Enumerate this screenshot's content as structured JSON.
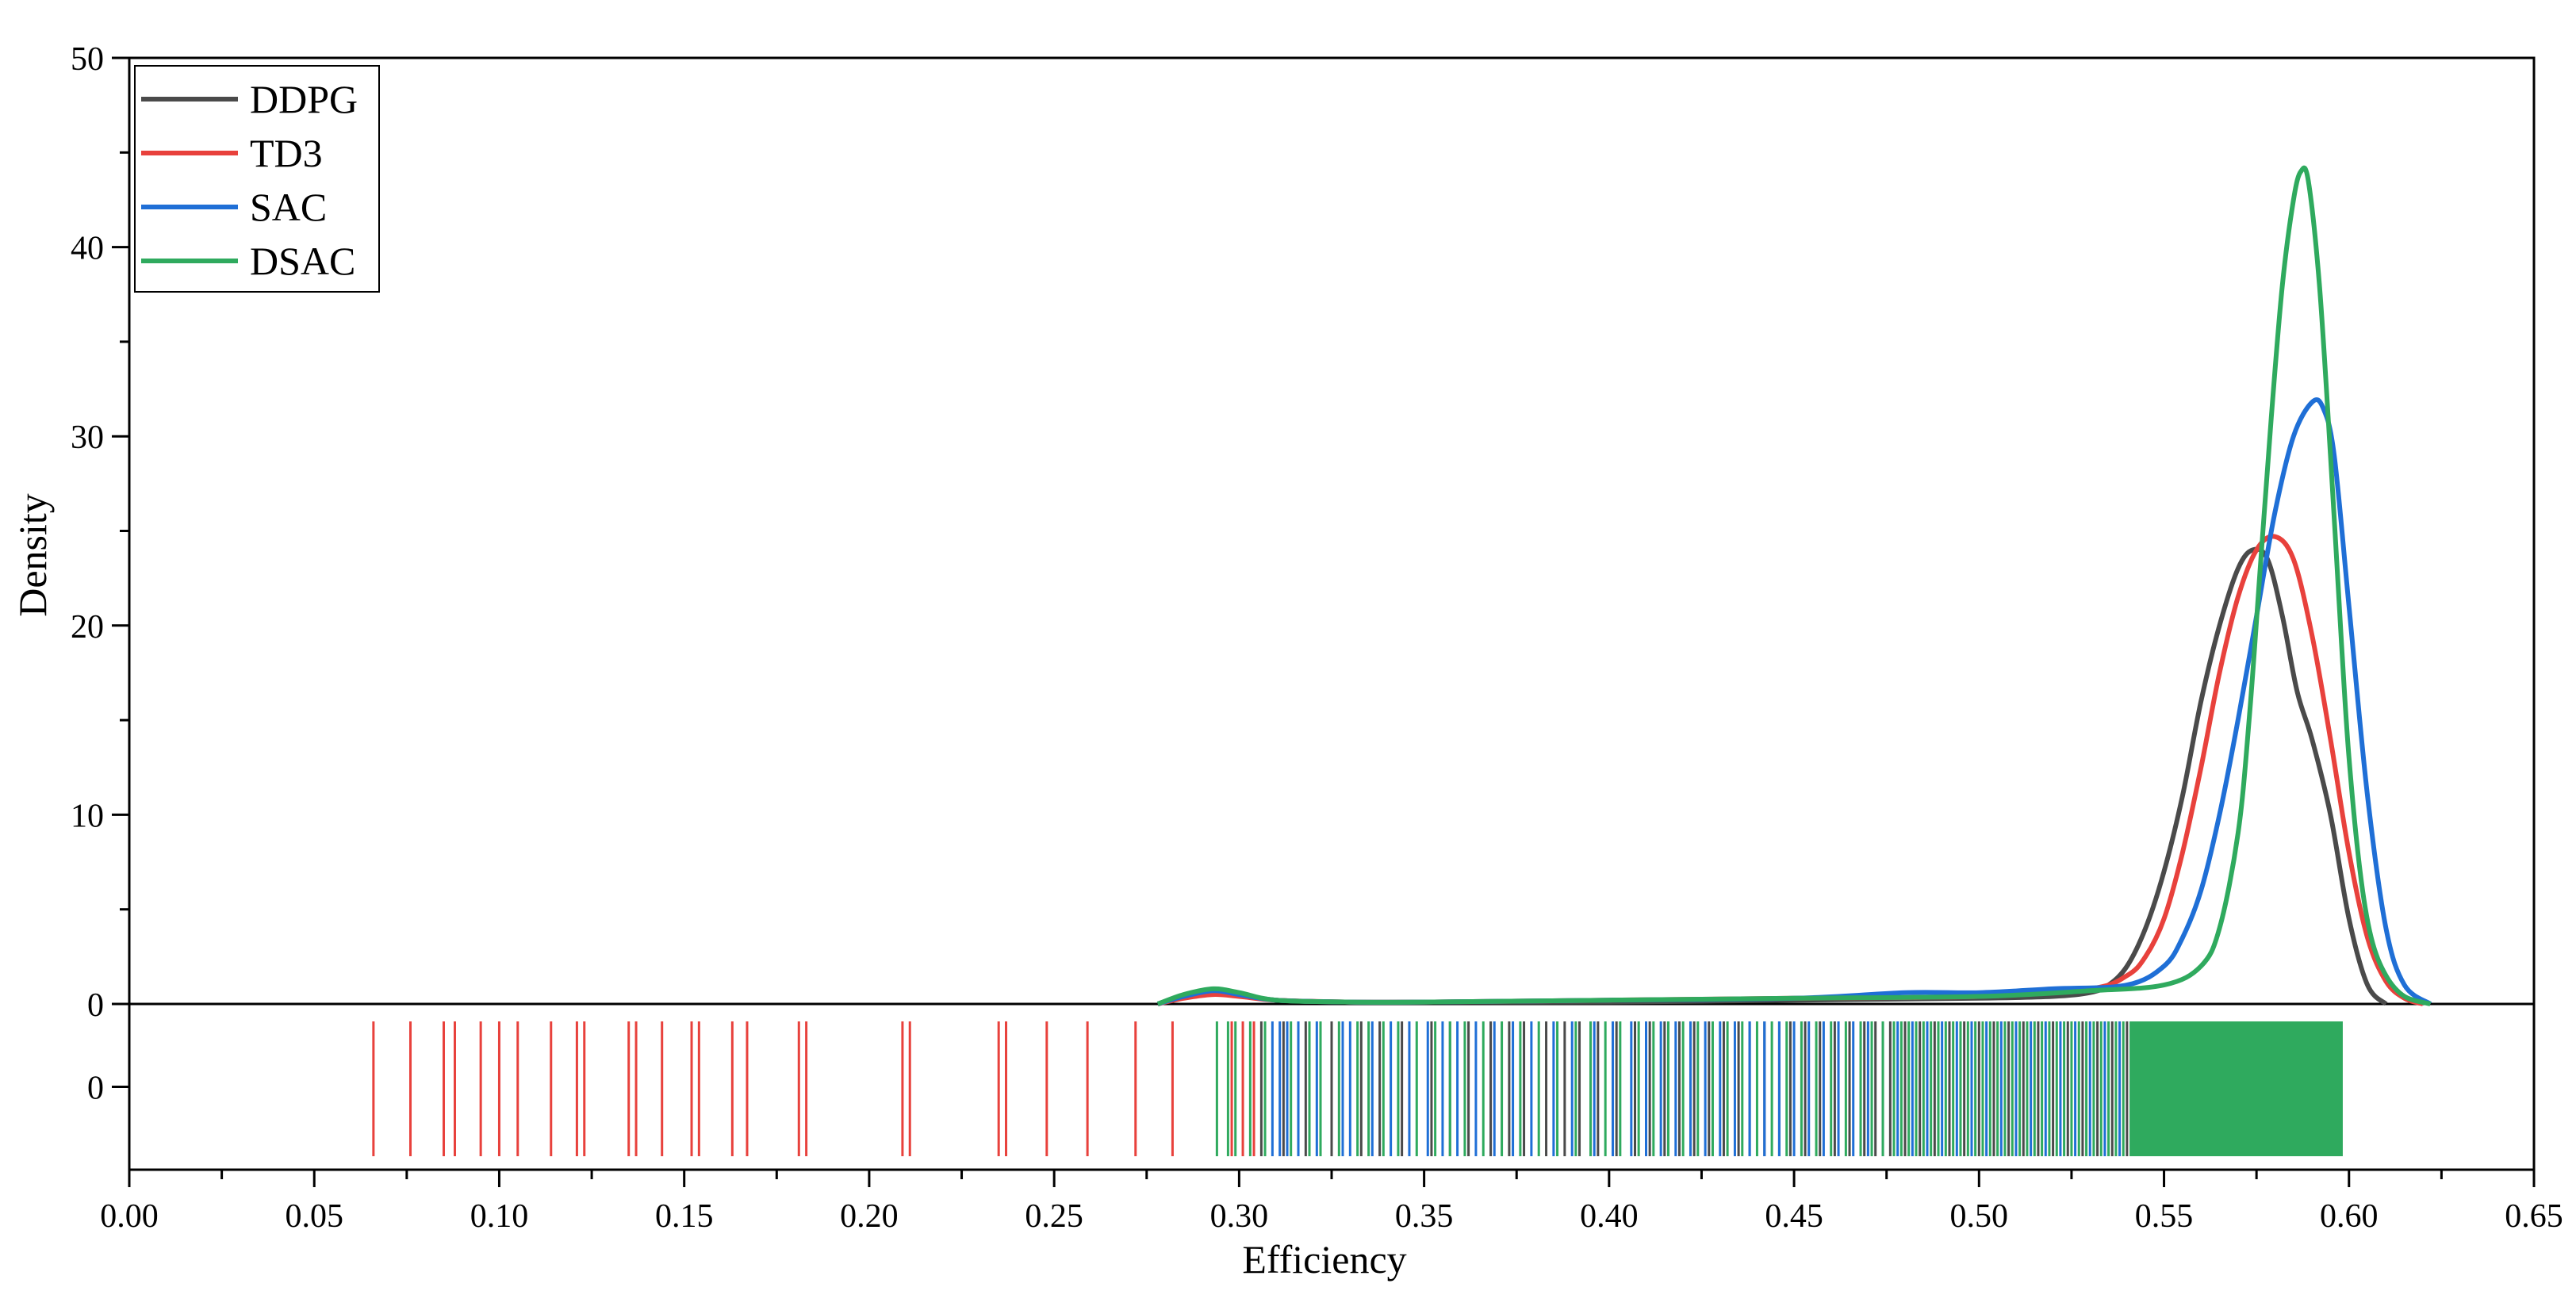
{
  "chart_data": {
    "type": "line",
    "title": "",
    "xlabel": "Efficiency",
    "ylabel": "Density",
    "xlim": [
      0.0,
      0.65
    ],
    "ylim": [
      0,
      50
    ],
    "x_ticks": [
      "0.00",
      "0.05",
      "0.10",
      "0.15",
      "0.20",
      "0.25",
      "0.30",
      "0.35",
      "0.40",
      "0.45",
      "0.50",
      "0.55",
      "0.60",
      "0.65"
    ],
    "y_ticks": [
      "0",
      "10",
      "20",
      "30",
      "40",
      "50"
    ],
    "rug_tick_label": "0",
    "legend_position": "top-left",
    "grid": false,
    "series": [
      {
        "name": "DDPG",
        "color": "#4a4a4a",
        "x": [
          0.278,
          0.285,
          0.293,
          0.3,
          0.31,
          0.33,
          0.35,
          0.4,
          0.45,
          0.5,
          0.52,
          0.53,
          0.535,
          0.54,
          0.545,
          0.55,
          0.555,
          0.56,
          0.565,
          0.57,
          0.574,
          0.578,
          0.582,
          0.586,
          0.59,
          0.595,
          0.6,
          0.605,
          0.61
        ],
        "y": [
          0.0,
          0.4,
          0.6,
          0.5,
          0.2,
          0.1,
          0.1,
          0.1,
          0.2,
          0.3,
          0.4,
          0.6,
          1.0,
          2.0,
          4.0,
          7.0,
          11.0,
          16.0,
          20.0,
          23.0,
          24.0,
          23.5,
          20.5,
          16.5,
          14.0,
          10.0,
          4.5,
          1.0,
          0.0
        ]
      },
      {
        "name": "TD3",
        "color": "#e8413c",
        "x": [
          0.278,
          0.285,
          0.293,
          0.3,
          0.31,
          0.33,
          0.35,
          0.4,
          0.45,
          0.5,
          0.53,
          0.54,
          0.545,
          0.55,
          0.555,
          0.56,
          0.565,
          0.57,
          0.575,
          0.58,
          0.585,
          0.59,
          0.595,
          0.6,
          0.605,
          0.61,
          0.615,
          0.62
        ],
        "y": [
          0.0,
          0.3,
          0.5,
          0.4,
          0.2,
          0.1,
          0.1,
          0.2,
          0.3,
          0.4,
          0.8,
          1.5,
          2.5,
          4.5,
          8.0,
          12.5,
          17.5,
          21.5,
          24.0,
          24.7,
          23.5,
          19.5,
          14.0,
          8.0,
          3.5,
          1.2,
          0.3,
          0.0
        ]
      },
      {
        "name": "SAC",
        "color": "#1f6fd6",
        "x": [
          0.278,
          0.285,
          0.293,
          0.3,
          0.31,
          0.33,
          0.35,
          0.4,
          0.45,
          0.48,
          0.5,
          0.52,
          0.54,
          0.55,
          0.555,
          0.56,
          0.565,
          0.57,
          0.575,
          0.58,
          0.585,
          0.59,
          0.593,
          0.596,
          0.6,
          0.605,
          0.61,
          0.615,
          0.622
        ],
        "y": [
          0.0,
          0.4,
          0.7,
          0.5,
          0.2,
          0.1,
          0.1,
          0.2,
          0.3,
          0.6,
          0.6,
          0.8,
          1.0,
          2.0,
          3.5,
          6.0,
          10.0,
          15.0,
          20.5,
          26.0,
          30.0,
          31.8,
          31.5,
          29.0,
          21.0,
          11.0,
          4.0,
          1.0,
          0.0
        ]
      },
      {
        "name": "DSAC",
        "color": "#2faa5e",
        "x": [
          0.278,
          0.285,
          0.293,
          0.3,
          0.31,
          0.33,
          0.35,
          0.4,
          0.45,
          0.5,
          0.53,
          0.55,
          0.56,
          0.565,
          0.57,
          0.573,
          0.576,
          0.579,
          0.582,
          0.585,
          0.587,
          0.589,
          0.592,
          0.595,
          0.598,
          0.6,
          0.603,
          0.606,
          0.61,
          0.615,
          0.622
        ],
        "y": [
          0.0,
          0.5,
          0.8,
          0.6,
          0.2,
          0.1,
          0.1,
          0.2,
          0.3,
          0.4,
          0.7,
          1.0,
          2.0,
          4.0,
          9.0,
          15.0,
          23.0,
          31.0,
          38.0,
          42.5,
          44.0,
          43.5,
          38.0,
          29.0,
          19.0,
          13.0,
          7.0,
          3.5,
          1.5,
          0.4,
          0.0
        ]
      }
    ],
    "rug": [
      {
        "name": "TD3",
        "color": "#e8413c",
        "x": [
          0.066,
          0.076,
          0.085,
          0.088,
          0.095,
          0.1,
          0.105,
          0.114,
          0.121,
          0.123,
          0.135,
          0.137,
          0.144,
          0.152,
          0.154,
          0.163,
          0.167,
          0.181,
          0.183,
          0.209,
          0.211,
          0.235,
          0.237,
          0.248,
          0.259,
          0.272,
          0.282,
          0.298,
          0.301,
          0.304
        ]
      },
      {
        "name": "DDPG",
        "color": "#4a4a4a",
        "x": [
          0.306,
          0.312,
          0.318,
          0.325,
          0.333,
          0.338,
          0.344,
          0.352,
          0.357,
          0.362,
          0.368,
          0.373,
          0.377,
          0.383,
          0.388,
          0.392,
          0.397,
          0.402,
          0.407,
          0.411,
          0.415,
          0.419,
          0.423,
          0.427,
          0.431,
          0.435,
          0.438,
          0.442,
          0.446,
          0.449,
          0.453,
          0.457,
          0.461,
          0.465,
          0.469,
          0.472,
          0.476,
          0.48,
          0.484,
          0.488,
          0.492,
          0.496,
          0.5,
          0.504,
          0.508,
          0.512,
          0.516,
          0.52,
          0.524,
          0.528,
          0.532,
          0.536,
          0.54
        ]
      },
      {
        "name": "SAC",
        "color": "#1f6fd6",
        "x": [
          0.309,
          0.311,
          0.313,
          0.316,
          0.321,
          0.328,
          0.33,
          0.336,
          0.341,
          0.346,
          0.351,
          0.355,
          0.359,
          0.364,
          0.369,
          0.374,
          0.379,
          0.385,
          0.39,
          0.396,
          0.401,
          0.406,
          0.41,
          0.414,
          0.418,
          0.422,
          0.426,
          0.43,
          0.434,
          0.438,
          0.442,
          0.446,
          0.45,
          0.454,
          0.458,
          0.462,
          0.466,
          0.47,
          0.474,
          0.478,
          0.482,
          0.486,
          0.49,
          0.494,
          0.498,
          0.502,
          0.506,
          0.51,
          0.514,
          0.518,
          0.522,
          0.526,
          0.53,
          0.534,
          0.538,
          0.542,
          0.551,
          0.56,
          0.568,
          0.576
        ]
      },
      {
        "name": "DSAC",
        "color": "#2faa5e",
        "x": [
          0.294,
          0.297,
          0.299,
          0.303,
          0.307,
          0.314,
          0.319,
          0.322,
          0.327,
          0.332,
          0.335,
          0.339,
          0.343,
          0.348,
          0.353,
          0.357,
          0.361,
          0.366,
          0.371,
          0.376,
          0.381,
          0.386,
          0.391,
          0.395,
          0.399,
          0.403,
          0.408,
          0.412,
          0.416,
          0.42,
          0.424,
          0.428,
          0.432,
          0.436,
          0.44,
          0.444,
          0.448,
          0.452,
          0.456,
          0.46,
          0.464,
          0.468,
          0.471,
          0.474,
          0.477,
          0.479,
          0.481,
          0.483,
          0.485,
          0.487,
          0.489,
          0.491,
          0.493,
          0.495,
          0.497,
          0.499,
          0.501,
          0.503,
          0.505,
          0.507,
          0.509,
          0.511,
          0.513,
          0.515,
          0.517,
          0.519,
          0.521,
          0.523,
          0.525,
          0.527,
          0.529,
          0.531,
          0.533,
          0.535,
          0.537,
          0.539,
          0.541,
          0.543,
          0.545,
          0.547,
          0.549,
          0.551,
          0.553,
          0.555,
          0.557,
          0.559,
          0.561,
          0.563,
          0.565,
          0.567,
          0.569,
          0.571,
          0.573,
          0.575,
          0.577,
          0.579,
          0.581,
          0.583,
          0.585,
          0.587,
          0.589,
          0.591,
          0.593,
          0.595,
          0.597,
          0.598
        ]
      }
    ],
    "rug_fill": {
      "name": "DSAC",
      "color": "#2faa5e",
      "x_range": [
        0.541,
        0.598
      ]
    }
  }
}
